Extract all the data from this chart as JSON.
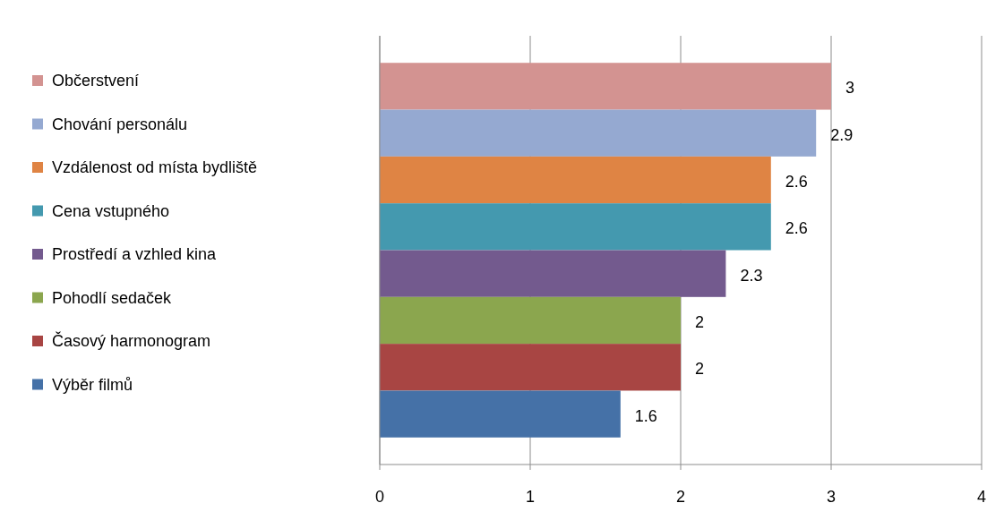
{
  "chart_data": {
    "type": "bar",
    "orientation": "horizontal",
    "categories": [
      null
    ],
    "series": [
      {
        "name": "Občerstvení",
        "color": "#d39391",
        "values": [
          3
        ]
      },
      {
        "name": "Chování personálu",
        "color": "#95a9d1",
        "values": [
          2.9
        ]
      },
      {
        "name": "Vzdálenost od místa bydliště",
        "color": "#df8444",
        "values": [
          2.6
        ]
      },
      {
        "name": "Cena vstupného",
        "color": "#4499af",
        "values": [
          2.6
        ]
      },
      {
        "name": "Prostředí a vzhled kina",
        "color": "#735a8e",
        "values": [
          2.3
        ]
      },
      {
        "name": "Pohodlí sedaček",
        "color": "#8ba64e",
        "values": [
          2
        ]
      },
      {
        "name": "Časový harmonogram",
        "color": "#a84543",
        "values": [
          2
        ]
      },
      {
        "name": "Výběr filmů",
        "color": "#4571a7",
        "values": [
          1.6
        ]
      }
    ],
    "xlim": [
      0,
      4
    ],
    "xticks": [
      0,
      1,
      2,
      3,
      4
    ],
    "grid": "x",
    "legend": "left",
    "data_labels": true,
    "tick_labels": "x"
  }
}
